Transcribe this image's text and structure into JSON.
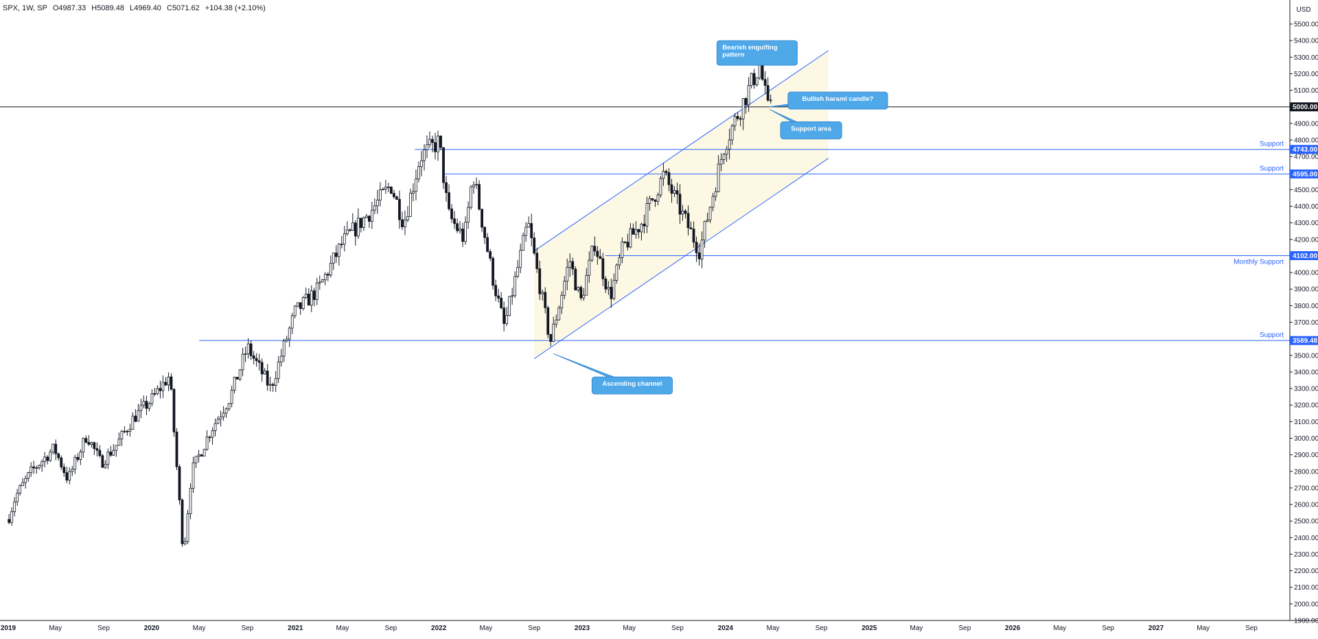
{
  "header": {
    "symbol": "SPX, 1W, SP",
    "open": "O4987.33",
    "high": "H5089.48",
    "low": "L4969.40",
    "close": "C5071.62",
    "change": "+104.38 (+2.10%)"
  },
  "colors": {
    "level_line": "#2962ff",
    "level_label_bg": "#2962ff",
    "round_number_line": "#131722",
    "channel_fill": "#fdf8e4",
    "callout_fill": "#4fa8e8",
    "callout_border": "#2b7fcf",
    "candle": "#131722",
    "axis_text": "#131722"
  },
  "chart_data": {
    "type": "candlestick",
    "symbol": "SPX",
    "interval": "1W",
    "currency": "USD",
    "y_axis": {
      "label": "USD",
      "min": 1900,
      "max": 5500,
      "ticks": [
        1900,
        2000,
        2100,
        2200,
        2300,
        2400,
        2500,
        2600,
        2700,
        2800,
        2900,
        3000,
        3100,
        3200,
        3300,
        3400,
        3500,
        3600,
        3700,
        3800,
        3900,
        4000,
        4100,
        4200,
        4300,
        4400,
        4500,
        4600,
        4700,
        4800,
        4900,
        5000,
        5100,
        5200,
        5300,
        5400,
        5500
      ]
    },
    "x_axis": {
      "start": "2019-01-01",
      "end": "2027-11-01",
      "ticks": [
        {
          "date": "2019-01-01",
          "label": "2019",
          "bold": true
        },
        {
          "date": "2019-05-01",
          "label": "May"
        },
        {
          "date": "2019-09-01",
          "label": "Sep"
        },
        {
          "date": "2020-01-01",
          "label": "2020",
          "bold": true
        },
        {
          "date": "2020-05-01",
          "label": "May"
        },
        {
          "date": "2020-09-01",
          "label": "Sep"
        },
        {
          "date": "2021-01-01",
          "label": "2021",
          "bold": true
        },
        {
          "date": "2021-05-01",
          "label": "May"
        },
        {
          "date": "2021-09-01",
          "label": "Sep"
        },
        {
          "date": "2022-01-01",
          "label": "2022",
          "bold": true
        },
        {
          "date": "2022-05-01",
          "label": "May"
        },
        {
          "date": "2022-09-01",
          "label": "Sep"
        },
        {
          "date": "2023-01-01",
          "label": "2023",
          "bold": true
        },
        {
          "date": "2023-05-01",
          "label": "May"
        },
        {
          "date": "2023-09-01",
          "label": "Sep"
        },
        {
          "date": "2024-01-01",
          "label": "2024",
          "bold": true
        },
        {
          "date": "2024-05-01",
          "label": "May"
        },
        {
          "date": "2024-09-01",
          "label": "Sep"
        },
        {
          "date": "2025-01-01",
          "label": "2025",
          "bold": true
        },
        {
          "date": "2025-05-01",
          "label": "May"
        },
        {
          "date": "2025-09-01",
          "label": "Sep"
        },
        {
          "date": "2026-01-01",
          "label": "2026",
          "bold": true
        },
        {
          "date": "2026-05-01",
          "label": "May"
        },
        {
          "date": "2026-09-01",
          "label": "Sep"
        },
        {
          "date": "2027-01-01",
          "label": "2027",
          "bold": true
        },
        {
          "date": "2027-05-01",
          "label": "May"
        },
        {
          "date": "2027-09-01",
          "label": "Sep"
        }
      ]
    },
    "series_anchors": [
      [
        "2019-01-01",
        2510
      ],
      [
        "2019-01-20",
        2650
      ],
      [
        "2019-03-01",
        2800
      ],
      [
        "2019-04-28",
        2940
      ],
      [
        "2019-06-02",
        2750
      ],
      [
        "2019-07-20",
        3020
      ],
      [
        "2019-08-25",
        2850
      ],
      [
        "2019-10-01",
        2950
      ],
      [
        "2019-11-15",
        3120
      ],
      [
        "2019-12-31",
        3230
      ],
      [
        "2020-02-16",
        3380
      ],
      [
        "2020-03-01",
        2950
      ],
      [
        "2020-03-22",
        2300
      ],
      [
        "2020-04-12",
        2800
      ],
      [
        "2020-05-31",
        3050
      ],
      [
        "2020-07-19",
        3250
      ],
      [
        "2020-09-01",
        3550
      ],
      [
        "2020-10-30",
        3300
      ],
      [
        "2020-12-31",
        3760
      ],
      [
        "2021-03-01",
        3900
      ],
      [
        "2021-05-01",
        4180
      ],
      [
        "2021-07-15",
        4380
      ],
      [
        "2021-09-01",
        4530
      ],
      [
        "2021-10-04",
        4300
      ],
      [
        "2021-11-15",
        4700
      ],
      [
        "2022-01-02",
        4790
      ],
      [
        "2022-01-25",
        4350
      ],
      [
        "2022-03-07",
        4200
      ],
      [
        "2022-03-29",
        4600
      ],
      [
        "2022-05-20",
        3950
      ],
      [
        "2022-06-17",
        3670
      ],
      [
        "2022-08-16",
        4300
      ],
      [
        "2022-10-12",
        3580
      ],
      [
        "2022-11-30",
        4080
      ],
      [
        "2022-12-28",
        3820
      ],
      [
        "2023-02-02",
        4180
      ],
      [
        "2023-03-13",
        3850
      ],
      [
        "2023-04-15",
        4150
      ],
      [
        "2023-06-01",
        4300
      ],
      [
        "2023-07-28",
        4590
      ],
      [
        "2023-10-27",
        4130
      ],
      [
        "2023-12-29",
        4770
      ],
      [
        "2024-02-15",
        5030
      ],
      [
        "2024-03-28",
        5254
      ],
      [
        "2024-04-19",
        4970
      ],
      [
        "2024-04-26",
        5071
      ]
    ],
    "levels": [
      {
        "value": 4743,
        "price_label": "4743.00",
        "text": "Support",
        "from": "2021-11-01",
        "text_side": "above"
      },
      {
        "value": 4595,
        "price_label": "4595.00",
        "text": "Support",
        "from": "2022-01-10",
        "text_side": "above"
      },
      {
        "value": 4102,
        "price_label": "4102.00",
        "text": "Monthly Support",
        "from": "2023-03-01",
        "text_side": "below"
      },
      {
        "value": 3589.48,
        "price_label": "3589.48",
        "text": "Support",
        "from": "2020-05-01",
        "text_side": "above"
      }
    ],
    "round_number": {
      "value": 5000,
      "price_label": "5000.00"
    },
    "channel": {
      "label": "Ascending channel",
      "upper": [
        [
          "2022-09-01",
          4130
        ],
        [
          "2024-09-19",
          5340
        ]
      ],
      "lower": [
        [
          "2022-09-01",
          3480
        ],
        [
          "2024-09-19",
          4690
        ]
      ]
    },
    "annotations": [
      {
        "text": [
          "Bearish engulfing",
          "pattern"
        ],
        "date": "2024-03-15",
        "price": 5250,
        "box_date": "2023-12-10",
        "box_price": 5400
      },
      {
        "text": [
          "Bullish harami candle?"
        ],
        "date": "2024-04-22",
        "price": 5000,
        "box_date": "2024-06-08",
        "box_price": 5090
      },
      {
        "text": [
          "Support area"
        ],
        "date": "2024-04-22",
        "price": 4985,
        "box_date": "2024-05-20",
        "box_price": 4910
      },
      {
        "text": [
          "Ascending channel"
        ],
        "date": "2022-10-20",
        "price": 3510,
        "box_date": "2023-01-26",
        "box_price": 3370
      }
    ]
  }
}
